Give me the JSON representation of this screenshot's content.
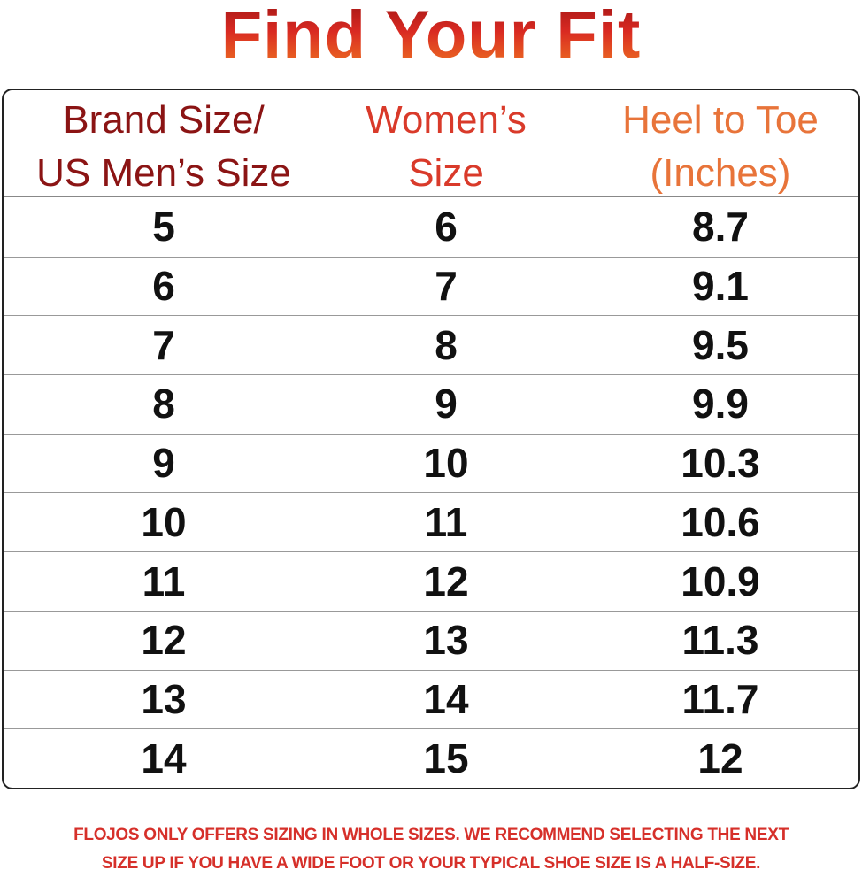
{
  "title": "Find Your Fit",
  "colors": {
    "col1": "#8b1414",
    "col2": "#d93a2a",
    "col3": "#e8743a",
    "note": "#d6302a"
  },
  "headers": [
    {
      "line1": "Brand Size/",
      "line2": "US Men’s Size"
    },
    {
      "line1": "Women’s",
      "line2": "Size"
    },
    {
      "line1": "Heel to Toe",
      "line2": "(Inches)"
    }
  ],
  "rows": [
    [
      "5",
      "6",
      "8.7"
    ],
    [
      "6",
      "7",
      "9.1"
    ],
    [
      "7",
      "8",
      "9.5"
    ],
    [
      "8",
      "9",
      "9.9"
    ],
    [
      "9",
      "10",
      "10.3"
    ],
    [
      "10",
      "11",
      "10.6"
    ],
    [
      "11",
      "12",
      "10.9"
    ],
    [
      "12",
      "13",
      "11.3"
    ],
    [
      "13",
      "14",
      "11.7"
    ],
    [
      "14",
      "15",
      "12"
    ]
  ],
  "note": {
    "line1": "FLOJOS ONLY OFFERS SIZING IN WHOLE SIZES. WE RECOMMEND SELECTING THE NEXT",
    "line2": "SIZE UP IF YOU HAVE A WIDE FOOT OR YOUR TYPICAL SHOE SIZE IS A HALF-SIZE."
  }
}
